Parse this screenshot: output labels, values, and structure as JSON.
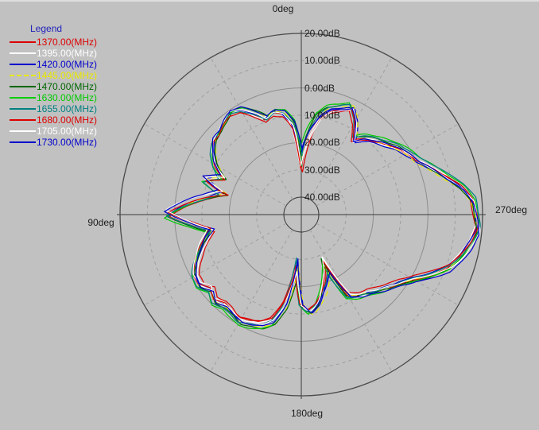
{
  "window": {
    "background_color": "#c1c1c1",
    "top_edge_highlight_color": "#dedede"
  },
  "legend": {
    "title": "Legend",
    "title_color": "#2222bb"
  },
  "chart_data": {
    "type": "line",
    "subtype": "polar-radiation-pattern",
    "title": "",
    "orientation": "0deg at top, 90deg left, 180deg bottom, 270deg right (angles increase counterclockwise)",
    "grid": "concentric circles every 10 dB, alternating solid/dashed, dashed radial spokes every 30 degrees",
    "legend_position": "top-left",
    "angle_labels": [
      {
        "text": "0deg",
        "angle": 0
      },
      {
        "text": "90deg",
        "angle": 90
      },
      {
        "text": "180deg",
        "angle": 180
      },
      {
        "text": "270deg",
        "angle": 270
      }
    ],
    "radial_axis": {
      "labels": [
        "20.00dB",
        "10.00dB",
        "0.00dB",
        "10.00dB",
        "20.00dB",
        "30.00dB",
        "40.00dB"
      ],
      "values_db": [
        20,
        10,
        0,
        -10,
        -20,
        -30,
        -40
      ],
      "db_max_outer_ring": 20,
      "db_min_inner_ring": -40,
      "db_step": 10
    },
    "angles_deg": [
      0,
      5,
      10,
      15,
      20,
      25,
      30,
      35,
      40,
      45,
      50,
      55,
      60,
      65,
      70,
      75,
      80,
      85,
      90,
      95,
      100,
      105,
      110,
      115,
      120,
      125,
      130,
      135,
      140,
      145,
      150,
      155,
      160,
      165,
      170,
      175,
      180,
      185,
      190,
      195,
      200,
      205,
      210,
      215,
      220,
      225,
      230,
      235,
      240,
      245,
      250,
      255,
      260,
      265,
      270,
      275,
      280,
      285,
      290,
      295,
      300,
      305,
      310,
      315,
      320,
      325,
      330,
      335,
      340,
      345,
      350,
      355
    ],
    "base_pattern_db": [
      -26,
      -13,
      -8.5,
      -7.5,
      -9,
      -5.5,
      -2,
      -1,
      -2.5,
      -4,
      -4.5,
      -7,
      -10,
      -15,
      -9,
      -17,
      -11,
      -4,
      2.5,
      -6,
      -13,
      -10,
      -7,
      -4,
      -1.5,
      -1,
      -3.5,
      -1.5,
      -3,
      -2.5,
      -1.5,
      -2.5,
      -3.5,
      -6,
      -13,
      -27,
      -13,
      -10.5,
      -13,
      -17,
      -21,
      -26,
      -12,
      -10,
      -9,
      -7,
      -5,
      -2.5,
      1,
      6,
      11,
      14,
      16.5,
      18.5,
      17.5,
      16.5,
      13,
      8,
      4,
      0.5,
      -1.5,
      -3.5,
      -6,
      -8,
      -10,
      -13,
      -7,
      -3,
      -5,
      -6.5,
      -10,
      -17
    ],
    "main_lobe": {
      "direction_deg": 267,
      "peak_db": 18.5
    },
    "deep_nulls_deg": [
      0,
      175,
      205,
      325
    ],
    "series": [
      {
        "name": "1370.00(MHz)",
        "color": "#dd0000",
        "dashed": false,
        "trim_db": -0.8,
        "phase": 0.0
      },
      {
        "name": "1395.00(MHz)",
        "color": "#ffffff",
        "dashed": false,
        "trim_db": -0.35,
        "phase": 0.63
      },
      {
        "name": "1420.00(MHz)",
        "color": "#0000cc",
        "dashed": false,
        "trim_db": -0.15,
        "phase": 1.26
      },
      {
        "name": "1445.00(MHz)",
        "color": "#e8e800",
        "dashed": true,
        "trim_db": 0.1,
        "phase": 1.89
      },
      {
        "name": "1470.00(MHz)",
        "color": "#006600",
        "dashed": false,
        "trim_db": 0.3,
        "phase": 2.52
      },
      {
        "name": "1630.00(MHz)",
        "color": "#00cc00",
        "dashed": false,
        "trim_db": 1.0,
        "phase": 3.15
      },
      {
        "name": "1655.00(MHz)",
        "color": "#008080",
        "dashed": false,
        "trim_db": 0.45,
        "phase": 3.78
      },
      {
        "name": "1680.00(MHz)",
        "color": "#dd0000",
        "dashed": false,
        "trim_db": -0.55,
        "phase": 4.41
      },
      {
        "name": "1705.00(MHz)",
        "color": "#ffffff",
        "dashed": false,
        "trim_db": 0.2,
        "phase": 5.04
      },
      {
        "name": "1730.00(MHz)",
        "color": "#0000cc",
        "dashed": false,
        "trim_db": 0.55,
        "phase": 5.67
      }
    ]
  }
}
